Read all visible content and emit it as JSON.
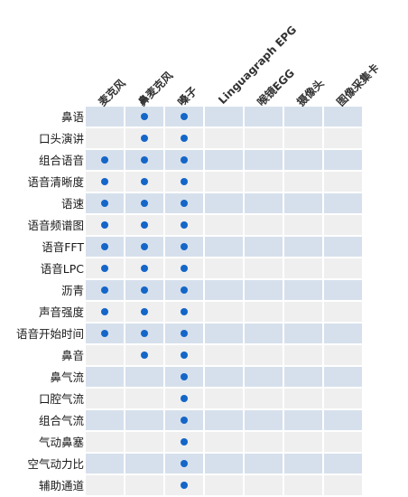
{
  "chart_data": {
    "type": "table",
    "columns": [
      "麦克风",
      "鼻麦克风",
      "嗓子",
      "Linguagraph EPG",
      "喉镜EGG",
      "摄像头",
      "图像采集卡"
    ],
    "rows": [
      "鼻语",
      "口头演讲",
      "组合语音",
      "语音清晰度",
      "语速",
      "语音频谱图",
      "语音FFT",
      "语音LPC",
      "沥青",
      "声音强度",
      "语音开始时间",
      "鼻音",
      "鼻气流",
      "口腔气流",
      "组合气流",
      "气动鼻塞",
      "空气动力比",
      "辅助通道"
    ],
    "cells": [
      [
        0,
        1,
        1,
        0,
        0,
        0,
        0
      ],
      [
        0,
        1,
        1,
        0,
        0,
        0,
        0
      ],
      [
        1,
        1,
        1,
        0,
        0,
        0,
        0
      ],
      [
        1,
        1,
        1,
        0,
        0,
        0,
        0
      ],
      [
        1,
        1,
        1,
        0,
        0,
        0,
        0
      ],
      [
        1,
        1,
        1,
        0,
        0,
        0,
        0
      ],
      [
        1,
        1,
        1,
        0,
        0,
        0,
        0
      ],
      [
        1,
        1,
        1,
        0,
        0,
        0,
        0
      ],
      [
        1,
        1,
        1,
        0,
        0,
        0,
        0
      ],
      [
        1,
        1,
        1,
        0,
        0,
        0,
        0
      ],
      [
        1,
        1,
        1,
        0,
        0,
        0,
        0
      ],
      [
        0,
        1,
        1,
        0,
        0,
        0,
        0
      ],
      [
        0,
        0,
        1,
        0,
        0,
        0,
        0
      ],
      [
        0,
        0,
        1,
        0,
        0,
        0,
        0
      ],
      [
        0,
        0,
        1,
        0,
        0,
        0,
        0
      ],
      [
        0,
        0,
        1,
        0,
        0,
        0,
        0
      ],
      [
        0,
        0,
        1,
        0,
        0,
        0,
        0
      ],
      [
        0,
        0,
        1,
        0,
        0,
        0,
        0
      ]
    ],
    "colors": {
      "band_dark": "#d6e0ec",
      "band_light": "#efefef",
      "dot": "#1466c8"
    }
  }
}
